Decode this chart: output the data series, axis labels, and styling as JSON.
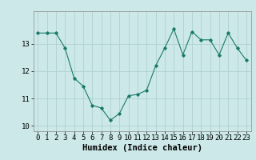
{
  "x": [
    0,
    1,
    2,
    3,
    4,
    5,
    6,
    7,
    8,
    9,
    10,
    11,
    12,
    13,
    14,
    15,
    16,
    17,
    18,
    19,
    20,
    21,
    22,
    23
  ],
  "y": [
    13.4,
    13.4,
    13.4,
    12.85,
    11.75,
    11.45,
    10.75,
    10.65,
    10.2,
    10.45,
    11.1,
    11.15,
    11.3,
    12.2,
    12.85,
    13.55,
    12.6,
    13.45,
    13.15,
    13.15,
    12.6,
    13.4,
    12.85,
    12.4
  ],
  "xlabel": "Humidex (Indice chaleur)",
  "ylabel": "",
  "ylim": [
    9.8,
    14.2
  ],
  "xlim": [
    -0.5,
    23.5
  ],
  "yticks": [
    10,
    11,
    12,
    13
  ],
  "xticks": [
    0,
    1,
    2,
    3,
    4,
    5,
    6,
    7,
    8,
    9,
    10,
    11,
    12,
    13,
    14,
    15,
    16,
    17,
    18,
    19,
    20,
    21,
    22,
    23
  ],
  "line_color": "#1a7a6a",
  "bg_color": "#cce8e8",
  "grid_color": "#aacece",
  "marker": "D",
  "markersize": 1.8,
  "linewidth": 0.8,
  "xlabel_fontsize": 7.5,
  "tick_fontsize": 6.5
}
